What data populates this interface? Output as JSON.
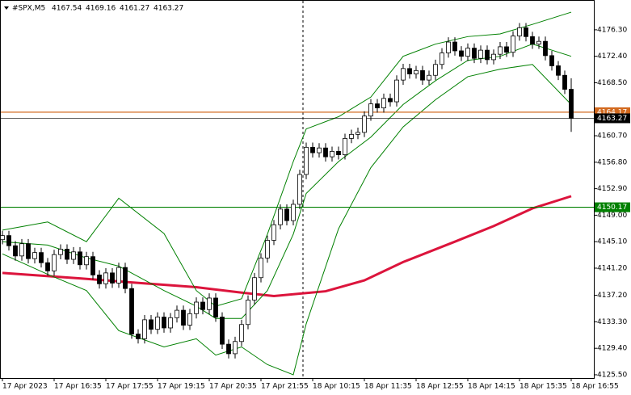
{
  "chart_data": {
    "type": "candlestick",
    "title": "#SPX,M5",
    "header_ohlc": [
      4167.54,
      4169.16,
      4161.27,
      4163.27
    ],
    "categories": [
      "17 Apr 2023",
      null,
      null,
      null,
      null,
      null,
      null,
      null,
      "17 Apr 16:35",
      null,
      null,
      null,
      null,
      null,
      null,
      null,
      "17 Apr 17:55",
      null,
      null,
      null,
      null,
      null,
      null,
      null,
      "17 Apr 19:15",
      null,
      null,
      null,
      null,
      null,
      null,
      null,
      "17 Apr 20:35",
      null,
      null,
      null,
      null,
      null,
      null,
      null,
      "17 Apr 21:55",
      null,
      null,
      null,
      null,
      null,
      null,
      null,
      "18 Apr 10:15",
      null,
      null,
      null,
      null,
      null,
      null,
      null,
      "18 Apr 11:35",
      null,
      null,
      null,
      null,
      null,
      null,
      null,
      "18 Apr 12:55",
      null,
      null,
      null,
      null,
      null,
      null,
      null,
      "18 Apr 14:15",
      null,
      null,
      null,
      null,
      null,
      null,
      null,
      "18 Apr 15:35",
      null,
      null,
      null,
      null,
      null,
      null,
      null,
      "18 Apr 16:55"
    ],
    "open": [
      4145.4,
      4146.0,
      4144.5,
      4143.0,
      4144.8,
      4142.6,
      4143.5,
      4142.0,
      4140.8,
      4143.2,
      4144.0,
      4142.5,
      4143.6,
      4141.7,
      4142.9,
      4140.2,
      4138.9,
      4140.5,
      4139.0,
      4141.3,
      4138.2,
      4131.5,
      4130.8,
      4133.6,
      4132.2,
      4134.0,
      4132.4,
      4133.9,
      4135.0,
      4132.8,
      4134.5,
      4136.2,
      4135.1,
      4136.8,
      4134.0,
      4130.0,
      4128.6,
      4130.4,
      4132.9,
      4136.5,
      4139.8,
      4142.7,
      4145.3,
      4147.6,
      4149.9,
      4148.2,
      4150.6,
      4155.0,
      4159.0,
      4158.2,
      4158.9,
      4157.6,
      4158.4,
      4157.9,
      4160.3,
      4160.9,
      4161.2,
      4163.6,
      4165.4,
      4164.8,
      4166.2,
      4165.7,
      4168.9,
      4170.6,
      4169.8,
      4170.3,
      4168.9,
      4169.6,
      4171.2,
      4172.9,
      4174.5,
      4173.2,
      4172.4,
      4173.6,
      4172.1,
      4173.3,
      4171.9,
      4172.7,
      4173.8,
      4173.0,
      4175.4,
      4176.6,
      4175.3,
      4174.2,
      4174.6,
      4172.5,
      4171.0,
      4169.6,
      4167.54
    ],
    "high": [
      4146.7,
      4146.7,
      4145.2,
      4145.5,
      4145.5,
      4144.2,
      4144.2,
      4142.7,
      4143.9,
      4144.7,
      4144.7,
      4144.3,
      4144.3,
      4143.6,
      4143.6,
      4140.9,
      4141.2,
      4141.2,
      4142.0,
      4142.0,
      4138.9,
      4132.2,
      4134.3,
      4134.3,
      4134.7,
      4134.7,
      4134.6,
      4135.7,
      4135.7,
      4135.2,
      4136.9,
      4136.9,
      4137.5,
      4137.5,
      4134.7,
      4130.7,
      4131.1,
      4133.6,
      4137.2,
      4140.5,
      4143.4,
      4146.0,
      4148.3,
      4150.6,
      4150.6,
      4151.3,
      4155.7,
      4159.7,
      4159.7,
      4159.6,
      4159.6,
      4159.1,
      4159.1,
      4161.0,
      4161.6,
      4161.9,
      4164.3,
      4166.1,
      4166.1,
      4166.9,
      4166.9,
      4169.6,
      4171.3,
      4171.3,
      4171.0,
      4171.0,
      4170.3,
      4171.9,
      4173.6,
      4175.2,
      4175.2,
      4173.9,
      4174.3,
      4174.3,
      4174.0,
      4174.0,
      4173.4,
      4174.5,
      4174.5,
      4176.1,
      4177.3,
      4177.3,
      4176.0,
      4175.3,
      4175.3,
      4173.2,
      4171.7,
      4170.3,
      4169.16
    ],
    "low": [
      4144.7,
      4143.8,
      4142.3,
      4142.3,
      4141.9,
      4141.9,
      4141.3,
      4140.1,
      4140.1,
      4142.5,
      4141.8,
      4141.8,
      4141.0,
      4141.0,
      4139.5,
      4138.2,
      4138.2,
      4138.3,
      4138.3,
      4137.5,
      4130.8,
      4130.1,
      4130.1,
      4131.5,
      4131.5,
      4131.7,
      4131.7,
      4133.2,
      4132.1,
      4132.1,
      4133.8,
      4134.4,
      4134.4,
      4133.3,
      4129.3,
      4127.9,
      4127.9,
      4129.7,
      4132.2,
      4135.8,
      4139.1,
      4142.0,
      4144.6,
      4146.9,
      4147.5,
      4147.5,
      4149.9,
      4154.3,
      4157.5,
      4157.5,
      4156.9,
      4156.9,
      4157.2,
      4157.2,
      4159.6,
      4160.2,
      4160.5,
      4162.9,
      4164.1,
      4164.1,
      4165.0,
      4165.0,
      4168.2,
      4169.1,
      4169.1,
      4168.2,
      4168.2,
      4168.9,
      4170.5,
      4172.2,
      4172.5,
      4171.7,
      4171.7,
      4171.4,
      4171.4,
      4171.2,
      4171.2,
      4172.0,
      4172.3,
      4172.3,
      4174.7,
      4174.6,
      4173.5,
      4173.5,
      4171.8,
      4170.3,
      4168.9,
      4166.84,
      4161.27
    ],
    "close": [
      4146.0,
      4144.5,
      4143.0,
      4144.8,
      4142.6,
      4143.5,
      4142.0,
      4140.8,
      4143.2,
      4144.0,
      4142.5,
      4143.6,
      4141.7,
      4142.9,
      4140.2,
      4138.9,
      4140.5,
      4139.0,
      4141.3,
      4138.2,
      4131.5,
      4130.8,
      4133.6,
      4132.2,
      4134.0,
      4132.4,
      4133.9,
      4135.0,
      4132.8,
      4134.5,
      4136.2,
      4135.1,
      4136.8,
      4134.0,
      4130.0,
      4128.6,
      4130.4,
      4132.9,
      4136.5,
      4139.8,
      4142.7,
      4145.3,
      4147.6,
      4149.9,
      4148.2,
      4150.6,
      4155.0,
      4159.0,
      4158.2,
      4158.9,
      4157.6,
      4158.4,
      4157.9,
      4160.3,
      4160.9,
      4161.2,
      4163.6,
      4165.4,
      4164.8,
      4166.2,
      4165.7,
      4168.9,
      4170.6,
      4169.8,
      4170.3,
      4168.9,
      4169.6,
      4171.2,
      4172.9,
      4174.5,
      4173.2,
      4172.4,
      4173.6,
      4172.1,
      4173.3,
      4171.9,
      4172.7,
      4173.8,
      4173.0,
      4175.4,
      4176.6,
      4175.3,
      4174.2,
      4174.6,
      4172.5,
      4171.0,
      4169.6,
      4167.54,
      4163.27
    ],
    "overlays": [
      {
        "color": "#dc143c",
        "x": [
          0,
          12,
          20,
          30,
          37,
          42,
          50,
          56,
          62,
          70,
          76,
          82,
          88
        ],
        "values": [
          4140.5,
          4139.7,
          4139.1,
          4138.4,
          4137.6,
          4137.1,
          4137.8,
          4139.4,
          4142.1,
          4145.1,
          4147.4,
          4150.0,
          4151.8
        ]
      },
      {
        "color": "#008000",
        "x": [
          0,
          7,
          13,
          18,
          25,
          30,
          33,
          37,
          41,
          45,
          47,
          52,
          57,
          62,
          67,
          72,
          77,
          82,
          88
        ],
        "values": [
          4146.8,
          4148.0,
          4145.1,
          4151.5,
          4146.3,
          4137.9,
          4135.6,
          4136.7,
          4146.2,
          4156.9,
          4161.7,
          4163.5,
          4166.4,
          4172.4,
          4174.2,
          4175.3,
          4175.7,
          4177.1,
          4178.9
        ]
      },
      {
        "color": "#008000",
        "x": [
          0,
          7,
          13,
          18,
          25,
          30,
          33,
          37,
          41,
          45,
          47,
          52,
          57,
          62,
          67,
          72,
          77,
          82,
          88
        ],
        "values": [
          4145.1,
          4144.6,
          4142.7,
          4141.5,
          4137.9,
          4135.6,
          4133.8,
          4133.8,
          4137.9,
          4146.2,
          4152.2,
          4156.9,
          4160.5,
          4165.3,
          4168.8,
          4171.8,
          4172.4,
          4174.2,
          4172.4
        ]
      },
      {
        "color": "#008000",
        "x": [
          0,
          7,
          13,
          18,
          25,
          30,
          33,
          37,
          41,
          45,
          47,
          52,
          57,
          62,
          67,
          72,
          77,
          82,
          88
        ],
        "values": [
          4143.3,
          4140.3,
          4137.9,
          4132.0,
          4129.6,
          4130.8,
          4128.4,
          4129.6,
          4127.0,
          4125.5,
          4133.0,
          4147.0,
          4156.0,
          4162.0,
          4166.0,
          4169.4,
          4170.5,
          4171.2,
          4165.3
        ]
      }
    ],
    "levels": [
      {
        "value": 4164.17,
        "color": "#d2691e"
      },
      {
        "value": 4163.27,
        "color": "#000000"
      },
      {
        "value": 4150.17,
        "color": "#008000"
      }
    ],
    "ylim": [
      4125.02,
      4180.69
    ],
    "yticks": [
      {
        "value": 4125.5,
        "label": "4125.50"
      },
      {
        "value": 4129.4,
        "label": "4129.40"
      },
      {
        "value": 4133.3,
        "label": "4133.30"
      },
      {
        "value": 4137.2,
        "label": "4137.20"
      },
      {
        "value": 4141.2,
        "label": "4141.20"
      },
      {
        "value": 4145.1,
        "label": "4145.10"
      },
      {
        "value": 4149.0,
        "label": "4149.00"
      },
      {
        "value": 4152.9,
        "label": "4152.90"
      },
      {
        "value": 4156.8,
        "label": "4156.80"
      },
      {
        "value": 4160.7,
        "label": "4160.70"
      },
      {
        "value": 4168.5,
        "label": "4168.50"
      },
      {
        "value": 4172.4,
        "label": "4172.40"
      },
      {
        "value": 4176.3,
        "label": "4176.30"
      }
    ],
    "grid": false
  }
}
